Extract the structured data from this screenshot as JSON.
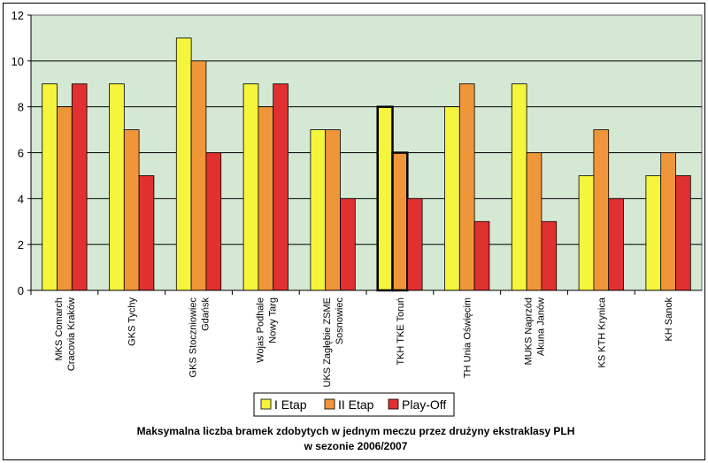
{
  "chart_data": {
    "type": "bar",
    "title_lines": [
      "Maksymalna liczba bramek zdobytych w jednym meczu przez drużyny ekstraklasy PLH",
      "w sezonie 2006/2007"
    ],
    "categories": [
      [
        "MKS Comarch",
        "Cracovia Kraków"
      ],
      [
        "GKS Tychy"
      ],
      [
        "GKS Stoczniowiec",
        "Gdańsk"
      ],
      [
        "Wojas Podhale",
        "Nowy Targ"
      ],
      [
        "UKS Zagłębie ZSME",
        "Sosnowiec"
      ],
      [
        "TKH TKE Toruń"
      ],
      [
        "TH Unia Oświęcim"
      ],
      [
        "MUKS Naprzód",
        "Akuna Janów"
      ],
      [
        "KS KTH Krynica"
      ],
      [
        "KH Sanok"
      ]
    ],
    "series": [
      {
        "name": "I Etap",
        "color": "#f5f53d",
        "values": [
          9,
          9,
          11,
          9,
          7,
          8,
          8,
          9,
          5,
          5
        ]
      },
      {
        "name": "II Etap",
        "color": "#f0963a",
        "values": [
          8,
          7,
          10,
          8,
          7,
          6,
          9,
          6,
          7,
          6
        ]
      },
      {
        "name": "Play-Off",
        "color": "#e03030",
        "values": [
          9,
          5,
          6,
          9,
          4,
          4,
          3,
          3,
          4,
          5
        ]
      }
    ],
    "highlighted_category_index": 5,
    "highlighted_series": [
      "I Etap",
      "II Etap"
    ],
    "ylim": [
      0,
      12
    ],
    "yticks": [
      "0",
      "2",
      "4",
      "6",
      "8",
      "10",
      "12"
    ],
    "grid": true,
    "plot_background": "#d4e8d4",
    "legend_position": "bottom"
  }
}
